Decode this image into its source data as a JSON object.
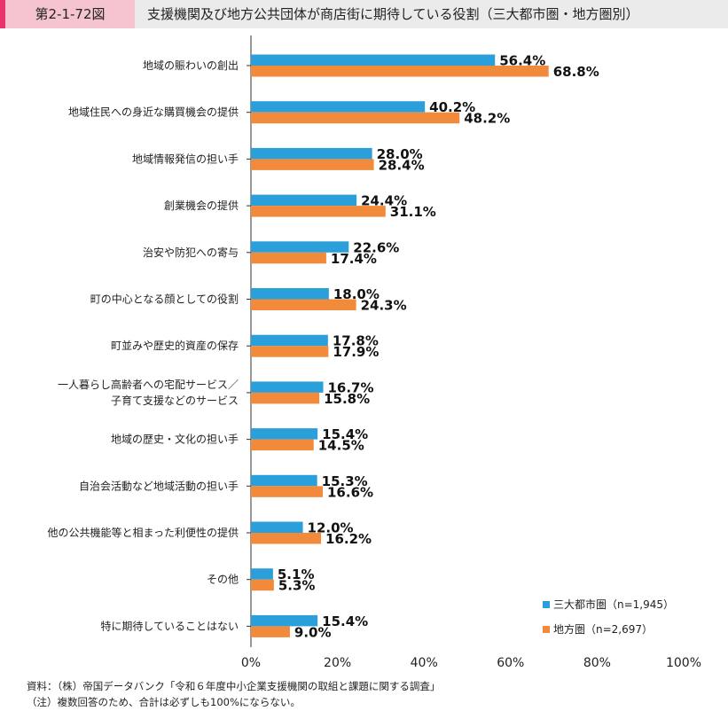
{
  "header": {
    "figure_number": "第2-1-72図",
    "title": "支援機関及び地方公共団体が商店街に期待している役割（三大都市圏・地方圏別）"
  },
  "chart_data": {
    "type": "bar",
    "orientation": "horizontal",
    "categories": [
      [
        "地域の賑わいの創出"
      ],
      [
        "地域住民への身近な購買機会の提供"
      ],
      [
        "地域情報発信の担い手"
      ],
      [
        "創業機会の提供"
      ],
      [
        "治安や防犯への寄与"
      ],
      [
        "町の中心となる顔としての役割"
      ],
      [
        "町並みや歴史的資産の保存"
      ],
      [
        "一人暮らし高齢者への宅配サービス／",
        "子育て支援などのサービス"
      ],
      [
        "地域の歴史・文化の担い手"
      ],
      [
        "自治会活動など地域活動の担い手"
      ],
      [
        "他の公共機能等と相まった利便性の提供"
      ],
      [
        "その他"
      ],
      [
        "特に期待していることはない"
      ]
    ],
    "series": [
      {
        "name": "三大都市圏（n=1,945）",
        "color": "#2b9fd9",
        "values": [
          56.4,
          40.2,
          28.0,
          24.4,
          22.6,
          18.0,
          17.8,
          16.7,
          15.4,
          15.3,
          12.0,
          5.1,
          15.4
        ],
        "labels": [
          "56.4%",
          "40.2%",
          "28.0%",
          "24.4%",
          "22.6%",
          "18.0%",
          "17.8%",
          "16.7%",
          "15.4%",
          "15.3%",
          "12.0%",
          "5.1%",
          "15.4%"
        ]
      },
      {
        "name": "地方圏（n=2,697）",
        "color": "#f28a3c",
        "values": [
          68.8,
          48.2,
          28.4,
          31.1,
          17.4,
          24.3,
          17.9,
          15.8,
          14.5,
          16.6,
          16.2,
          5.3,
          9.0
        ],
        "labels": [
          "68.8%",
          "48.2%",
          "28.4%",
          "31.1%",
          "17.4%",
          "24.3%",
          "17.9%",
          "15.8%",
          "14.5%",
          "16.6%",
          "16.2%",
          "5.3%",
          "9.0%"
        ]
      }
    ],
    "xlim": [
      0,
      100
    ],
    "xticks": [
      0,
      20,
      40,
      60,
      80,
      100
    ],
    "xtick_labels": [
      "0%",
      "20%",
      "40%",
      "60%",
      "80%",
      "100%"
    ],
    "grid": false,
    "legend_position": "bottom-right"
  },
  "footer": {
    "source": "資料：（株）帝国データバンク「令和６年度中小企業支援機関の取組と課題に関する調査」",
    "note": "（注）複数回答のため、合計は必ずしも100%にならない。"
  }
}
